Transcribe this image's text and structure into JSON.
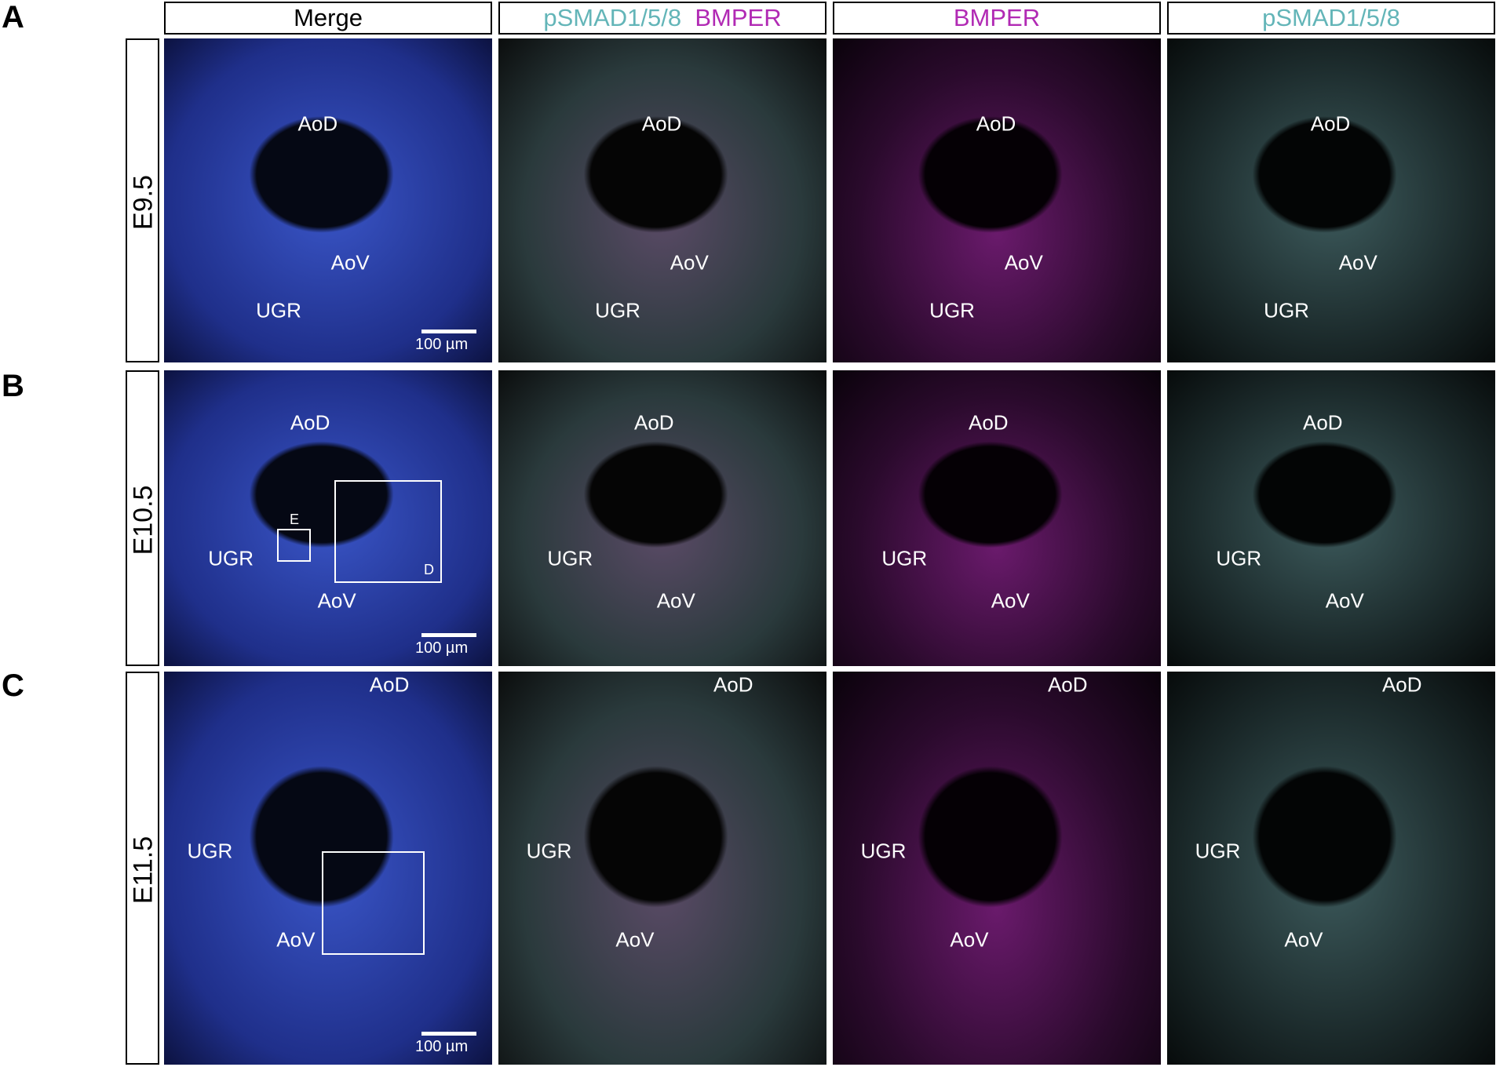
{
  "columns": [
    {
      "text": "Merge"
    },
    {
      "parts": [
        "pSMAD1/5/8",
        "BMPER"
      ]
    },
    {
      "text": "BMPER"
    },
    {
      "text": "pSMAD1/5/8"
    }
  ],
  "rows": [
    {
      "panel": "A",
      "stage": "E9.5",
      "regions": [
        "AoD",
        "AoV",
        "UGR"
      ],
      "scale_bar": "100 µm",
      "insets": []
    },
    {
      "panel": "B",
      "stage": "E10.5",
      "regions": [
        "AoD",
        "AoV",
        "UGR"
      ],
      "scale_bar": "100 µm",
      "insets": [
        "E",
        "D"
      ]
    },
    {
      "panel": "C",
      "stage": "E11.5",
      "regions": [
        "AoD",
        "AoV",
        "UGR"
      ],
      "scale_bar": "100 µm",
      "insets": [
        null
      ]
    }
  ]
}
